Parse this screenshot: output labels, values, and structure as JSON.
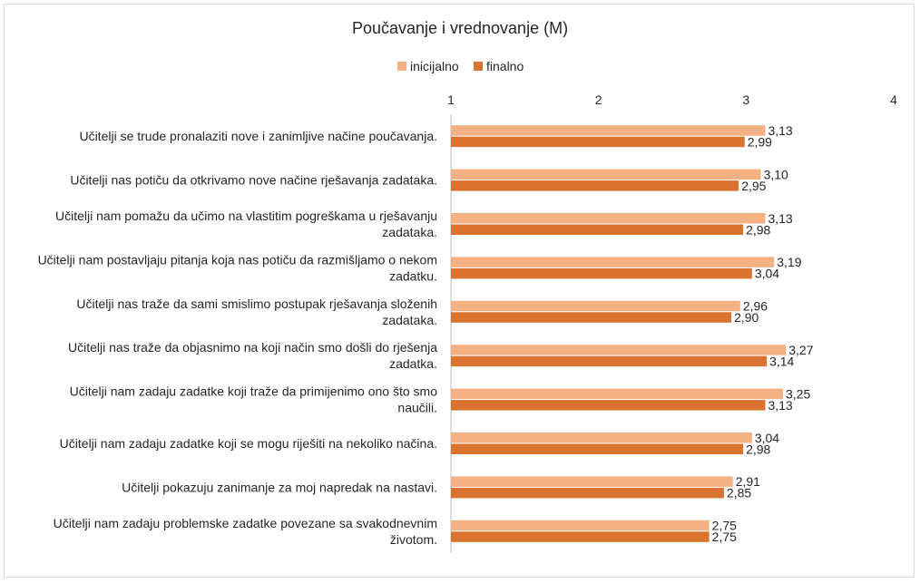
{
  "chart_data": {
    "type": "bar",
    "orientation": "horizontal",
    "title": "Poučavanje i vrednovanje (M)",
    "xlim": [
      1,
      4
    ],
    "x_ticks": [
      "1",
      "2",
      "3",
      "4"
    ],
    "legend_position": "top",
    "grid": false,
    "categories": [
      [
        "Učitelji se trude pronalaziti nove i zanimljive načine poučavanja."
      ],
      [
        "Učitelji nas potiču da otkrivamo nove načine rješavanja zadataka."
      ],
      [
        "Učitelji nam pomažu da učimo na vlastitim pogreškama u rješavanju",
        "zadataka."
      ],
      [
        "Učitelji nam postavljaju pitanja koja nas potiču da razmišljamo o nekom",
        "zadatku."
      ],
      [
        "Učitelji nas traže da sami smislimo postupak rješavanja složenih",
        "zadataka."
      ],
      [
        "Učitelji nas traže da objasnimo na koji način smo došli do rješenja",
        "zadatka."
      ],
      [
        "Učitelji nam zadaju zadatke koji traže da primijenimo ono što smo",
        "naučili."
      ],
      [
        "Učitelji nam zadaju zadatke koji se mogu riješiti na nekoliko načina."
      ],
      [
        "Učitelji pokazuju zanimanje za moj napredak na nastavi."
      ],
      [
        "Učitelji nam zadaju problemske zadatke povezane sa svakodnevnim",
        "životom."
      ]
    ],
    "series": [
      {
        "name": "inicijalno",
        "color": "#f4b183",
        "values": [
          3.13,
          3.1,
          3.13,
          3.19,
          2.96,
          3.27,
          3.25,
          3.04,
          2.91,
          2.75
        ],
        "labels": [
          "3,13",
          "3,10",
          "3,13",
          "3,19",
          "2,96",
          "3,27",
          "3,25",
          "3,04",
          "2,91",
          "2,75"
        ]
      },
      {
        "name": "finalno",
        "color": "#d9732f",
        "values": [
          2.99,
          2.95,
          2.98,
          3.04,
          2.9,
          3.14,
          3.13,
          2.98,
          2.85,
          2.75
        ],
        "labels": [
          "2,99",
          "2,95",
          "2,98",
          "3,04",
          "2,90",
          "3,14",
          "3,13",
          "2,98",
          "2,85",
          "2,75"
        ]
      }
    ]
  }
}
